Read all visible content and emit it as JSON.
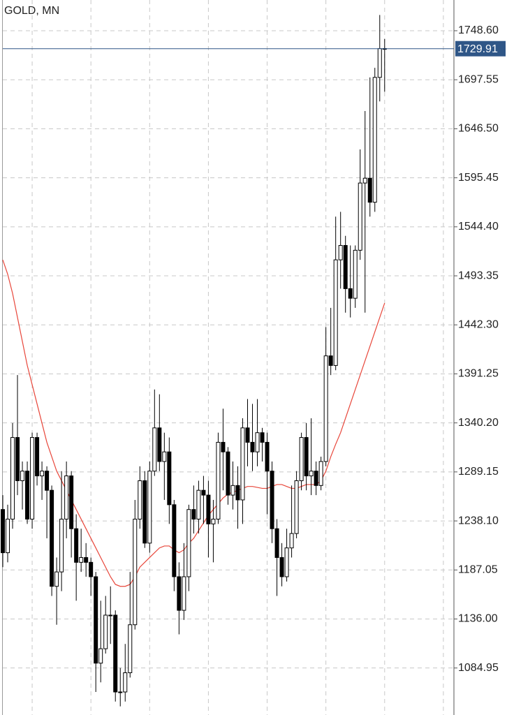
{
  "chart_data": {
    "type": "candlestick",
    "title": "GOLD, MN",
    "open": [
      1250,
      1205,
      1240,
      1325,
      1280,
      1290,
      1240,
      1325,
      1285,
      1290,
      1270,
      1170,
      1185,
      1240,
      1285,
      1230,
      1195,
      1200,
      1195,
      1180,
      1090,
      1105,
      1140,
      1140,
      1060,
      1060,
      1080,
      1130,
      1240,
      1280,
      1215,
      1290,
      1335,
      1300,
      1310,
      1255,
      1180,
      1145,
      1180,
      1250,
      1240,
      1270,
      1265,
      1235,
      1240,
      1320,
      1310,
      1265,
      1275,
      1260,
      1335,
      1320,
      1310,
      1330,
      1320,
      1290,
      1230,
      1200,
      1180,
      1210,
      1225,
      1280,
      1325,
      1285,
      1290,
      1275,
      1300,
      1410,
      1400,
      1510,
      1525,
      1480,
      1470,
      1520,
      1590,
      1595,
      1570,
      1700,
      1730
    ],
    "high": [
      1265,
      1255,
      1340,
      1390,
      1300,
      1300,
      1330,
      1330,
      1300,
      1295,
      1275,
      1200,
      1290,
      1300,
      1290,
      1245,
      1230,
      1215,
      1200,
      1185,
      1155,
      1160,
      1170,
      1145,
      1085,
      1110,
      1185,
      1260,
      1295,
      1290,
      1300,
      1375,
      1370,
      1330,
      1325,
      1260,
      1195,
      1215,
      1255,
      1275,
      1280,
      1285,
      1280,
      1260,
      1330,
      1355,
      1315,
      1300,
      1295,
      1345,
      1365,
      1360,
      1365,
      1335,
      1330,
      1300,
      1240,
      1215,
      1230,
      1275,
      1290,
      1330,
      1340,
      1345,
      1300,
      1305,
      1440,
      1460,
      1555,
      1560,
      1535,
      1525,
      1525,
      1625,
      1665,
      1700,
      1710,
      1765,
      1740
    ],
    "low": [
      1190,
      1195,
      1230,
      1265,
      1250,
      1235,
      1230,
      1275,
      1260,
      1220,
      1160,
      1130,
      1165,
      1220,
      1200,
      1155,
      1185,
      1180,
      1160,
      1060,
      1070,
      1100,
      1110,
      1050,
      1045,
      1050,
      1075,
      1125,
      1230,
      1210,
      1205,
      1285,
      1290,
      1260,
      1235,
      1165,
      1120,
      1135,
      1165,
      1225,
      1225,
      1235,
      1200,
      1195,
      1235,
      1270,
      1255,
      1250,
      1230,
      1235,
      1295,
      1290,
      1295,
      1300,
      1245,
      1215,
      1160,
      1170,
      1175,
      1200,
      1220,
      1270,
      1270,
      1265,
      1265,
      1270,
      1295,
      1390,
      1395,
      1480,
      1455,
      1450,
      1460,
      1510,
      1455,
      1555,
      1560,
      1675,
      1685
    ],
    "close": [
      1205,
      1240,
      1325,
      1280,
      1290,
      1240,
      1325,
      1285,
      1290,
      1270,
      1170,
      1185,
      1240,
      1285,
      1230,
      1195,
      1200,
      1195,
      1180,
      1090,
      1105,
      1140,
      1140,
      1060,
      1060,
      1080,
      1130,
      1240,
      1280,
      1215,
      1290,
      1335,
      1300,
      1310,
      1255,
      1180,
      1145,
      1180,
      1250,
      1240,
      1270,
      1265,
      1235,
      1240,
      1320,
      1310,
      1265,
      1275,
      1260,
      1335,
      1320,
      1310,
      1330,
      1320,
      1290,
      1230,
      1200,
      1180,
      1210,
      1225,
      1280,
      1325,
      1285,
      1290,
      1275,
      1300,
      1410,
      1400,
      1510,
      1525,
      1480,
      1470,
      1520,
      1590,
      1595,
      1570,
      1700,
      1730,
      1729.91
    ],
    "up_color": "#ffffff",
    "down_color": "#000000",
    "line_color": "#000000",
    "overlay": {
      "color": "#e8463a",
      "values": [
        1510,
        1495,
        1475,
        1450,
        1425,
        1400,
        1380,
        1360,
        1340,
        1320,
        1305,
        1290,
        1280,
        1270,
        1260,
        1250,
        1240,
        1230,
        1220,
        1210,
        1200,
        1190,
        1180,
        1172,
        1170,
        1170,
        1172,
        1180,
        1190,
        1195,
        1200,
        1205,
        1210,
        1212,
        1212,
        1208,
        1205,
        1208,
        1215,
        1220,
        1228,
        1236,
        1244,
        1250,
        1256,
        1262,
        1266,
        1268,
        1270,
        1272,
        1274,
        1274,
        1273,
        1272,
        1272,
        1274,
        1276,
        1276,
        1274,
        1272,
        1272,
        1274,
        1276,
        1276,
        1276,
        1280,
        1290,
        1305,
        1318,
        1330,
        1345,
        1360,
        1375,
        1390,
        1405,
        1420,
        1435,
        1450,
        1465
      ]
    },
    "last_price": 1729.91,
    "last_price_color": "#2f5687",
    "ylim": [
      1036,
      1780.6
    ],
    "yticks": [
      {
        "value": 1084.95,
        "label": "1084.95"
      },
      {
        "value": 1136,
        "label": "1136.00"
      },
      {
        "value": 1187.05,
        "label": "1187.05"
      },
      {
        "value": 1238.1,
        "label": "1238.10"
      },
      1289.15,
      {
        "value": 1340.2,
        "label": "1340.20"
      },
      1391.25,
      {
        "value": 1442.3,
        "label": "1442.30"
      },
      1493.35,
      {
        "value": 1544.4,
        "label": "1544.40"
      },
      1595.45,
      {
        "value": 1646.5,
        "label": "1646.50"
      },
      1697.55,
      {
        "value": 1748.6,
        "label": "1748.60"
      }
    ],
    "grid": true
  }
}
